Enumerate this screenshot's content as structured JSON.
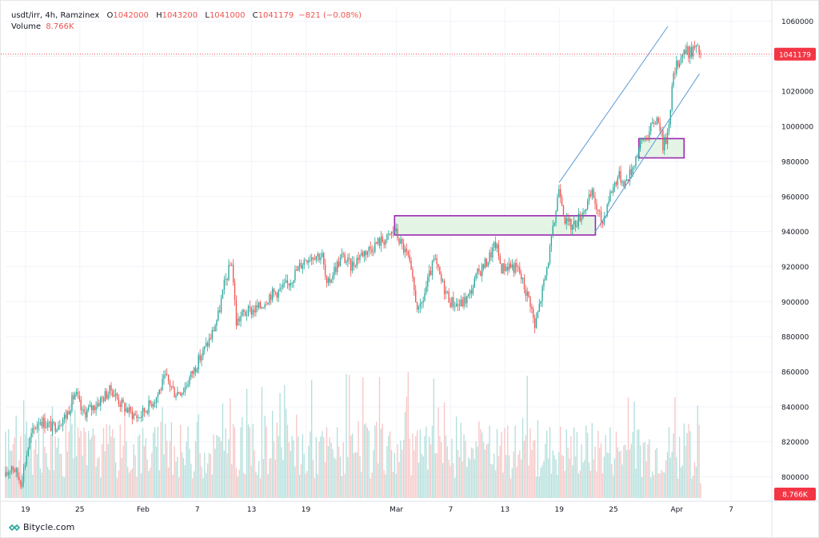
{
  "legend": {
    "symbol": "usdt/irr",
    "interval": "4h",
    "exchange": "Ramzinex",
    "o_label": "O",
    "o_value": "1042000",
    "h_label": "H",
    "h_value": "1043200",
    "l_label": "L",
    "l_value": "1041000",
    "c_label": "C",
    "c_value": "1041179",
    "change": "−821 (−0.08%)",
    "volume_label": "Volume",
    "volume_value": "8.766K"
  },
  "brand": {
    "name": "Bitycle.com",
    "icon": "bitycle-logo-icon"
  },
  "colors": {
    "up": "#26a69a",
    "down": "#ef5350",
    "volume_up": "#b2dfdb",
    "volume_down": "#f7c6c5",
    "channel": "#5b9bd5",
    "zone_fill": "#dff2e0",
    "zone_border": "#9c27b0",
    "price_tag": "#f23645"
  },
  "chart_data": {
    "type": "candlestick",
    "title": "usdt/irr, 4h, Ramzinex",
    "ylim": [
      787000,
      1068000
    ],
    "y_ticks": [
      800000,
      820000,
      840000,
      860000,
      880000,
      900000,
      920000,
      940000,
      960000,
      980000,
      1000000,
      1020000,
      1040000,
      1060000
    ],
    "y_tick_labels": [
      "800000",
      "820000",
      "840000",
      "860000",
      "880000",
      "900000",
      "920000",
      "940000",
      "960000",
      "980000",
      "1000000",
      "1020000",
      "1040000",
      "1060000"
    ],
    "x_tick_labels": [
      "19",
      "25",
      "Feb",
      "7",
      "13",
      "19",
      "Mar",
      "7",
      "13",
      "19",
      "25",
      "Apr",
      "7"
    ],
    "x_tick_days": [
      19,
      25,
      32,
      38,
      44,
      50,
      60,
      66,
      72,
      78,
      84,
      91,
      97
    ],
    "x_day_range": [
      16.8,
      101.5
    ],
    "last_price": 1041179,
    "last_price_label": "1041179",
    "last_volume_label": "8.766K",
    "volume_max": 75000,
    "price_path": [
      [
        16.8,
        800000
      ],
      [
        17.5,
        807000
      ],
      [
        18.5,
        797000
      ],
      [
        19.5,
        822000
      ],
      [
        20.5,
        833000
      ],
      [
        22.0,
        828000
      ],
      [
        23.5,
        835000
      ],
      [
        24.5,
        848000
      ],
      [
        25.3,
        836000
      ],
      [
        26.5,
        840000
      ],
      [
        27.5,
        845000
      ],
      [
        28.5,
        850000
      ],
      [
        29.5,
        842000
      ],
      [
        30.5,
        837000
      ],
      [
        31.5,
        834000
      ],
      [
        32.5,
        840000
      ],
      [
        33.5,
        846000
      ],
      [
        34.5,
        857000
      ],
      [
        35.5,
        848000
      ],
      [
        36.5,
        850000
      ],
      [
        37.5,
        860000
      ],
      [
        38.5,
        870000
      ],
      [
        39.5,
        880000
      ],
      [
        40.3,
        892000
      ],
      [
        41.0,
        910000
      ],
      [
        41.8,
        923000
      ],
      [
        42.3,
        888000
      ],
      [
        43.0,
        893000
      ],
      [
        44.0,
        895000
      ],
      [
        45.0,
        897000
      ],
      [
        46.0,
        904000
      ],
      [
        47.0,
        906000
      ],
      [
        48.0,
        910000
      ],
      [
        49.0,
        918000
      ],
      [
        50.0,
        925000
      ],
      [
        51.0,
        927000
      ],
      [
        51.8,
        926000
      ],
      [
        52.3,
        908000
      ],
      [
        53.0,
        917000
      ],
      [
        54.0,
        926000
      ],
      [
        55.0,
        920000
      ],
      [
        56.0,
        927000
      ],
      [
        57.0,
        930000
      ],
      [
        58.0,
        934000
      ],
      [
        59.0,
        936000
      ],
      [
        59.8,
        941000
      ],
      [
        60.5,
        933000
      ],
      [
        61.3,
        925000
      ],
      [
        62.0,
        905000
      ],
      [
        62.5,
        893000
      ],
      [
        63.5,
        912000
      ],
      [
        64.2,
        924000
      ],
      [
        65.0,
        911000
      ],
      [
        66.0,
        900000
      ],
      [
        67.0,
        898000
      ],
      [
        68.0,
        903000
      ],
      [
        69.0,
        916000
      ],
      [
        70.0,
        923000
      ],
      [
        71.0,
        933000
      ],
      [
        71.6,
        919000
      ],
      [
        72.5,
        921000
      ],
      [
        73.5,
        918000
      ],
      [
        74.3,
        906000
      ],
      [
        74.8,
        900000
      ],
      [
        75.3,
        885000
      ],
      [
        76.0,
        903000
      ],
      [
        76.6,
        918000
      ],
      [
        77.3,
        940000
      ],
      [
        77.7,
        955000
      ],
      [
        78.0,
        967000
      ],
      [
        78.7,
        945000
      ],
      [
        79.5,
        943000
      ],
      [
        80.2,
        948000
      ],
      [
        81.0,
        955000
      ],
      [
        81.7,
        962000
      ],
      [
        82.3,
        950000
      ],
      [
        82.8,
        945000
      ],
      [
        83.5,
        960000
      ],
      [
        84.5,
        972000
      ],
      [
        85.3,
        968000
      ],
      [
        86.0,
        975000
      ],
      [
        86.6,
        985000
      ],
      [
        87.3,
        993000
      ],
      [
        87.8,
        995000
      ],
      [
        88.5,
        1003000
      ],
      [
        89.0,
        1005000
      ],
      [
        89.5,
        988000
      ],
      [
        90.0,
        997000
      ],
      [
        90.6,
        1028000
      ],
      [
        91.2,
        1038000
      ],
      [
        91.8,
        1043000
      ],
      [
        92.4,
        1042000
      ],
      [
        93.0,
        1045000
      ],
      [
        93.7,
        1041179
      ]
    ],
    "zones": [
      {
        "start_day": 59.8,
        "end_day": 82.0,
        "low": 938000,
        "high": 949000
      },
      {
        "start_day": 86.8,
        "end_day": 91.8,
        "low": 982000,
        "high": 993000
      }
    ],
    "channel_lines": [
      {
        "from": [
          78.0,
          968000
        ],
        "to": [
          90.0,
          1057000
        ]
      },
      {
        "from": [
          82.0,
          940000
        ],
        "to": [
          93.5,
          1030000
        ]
      }
    ]
  }
}
